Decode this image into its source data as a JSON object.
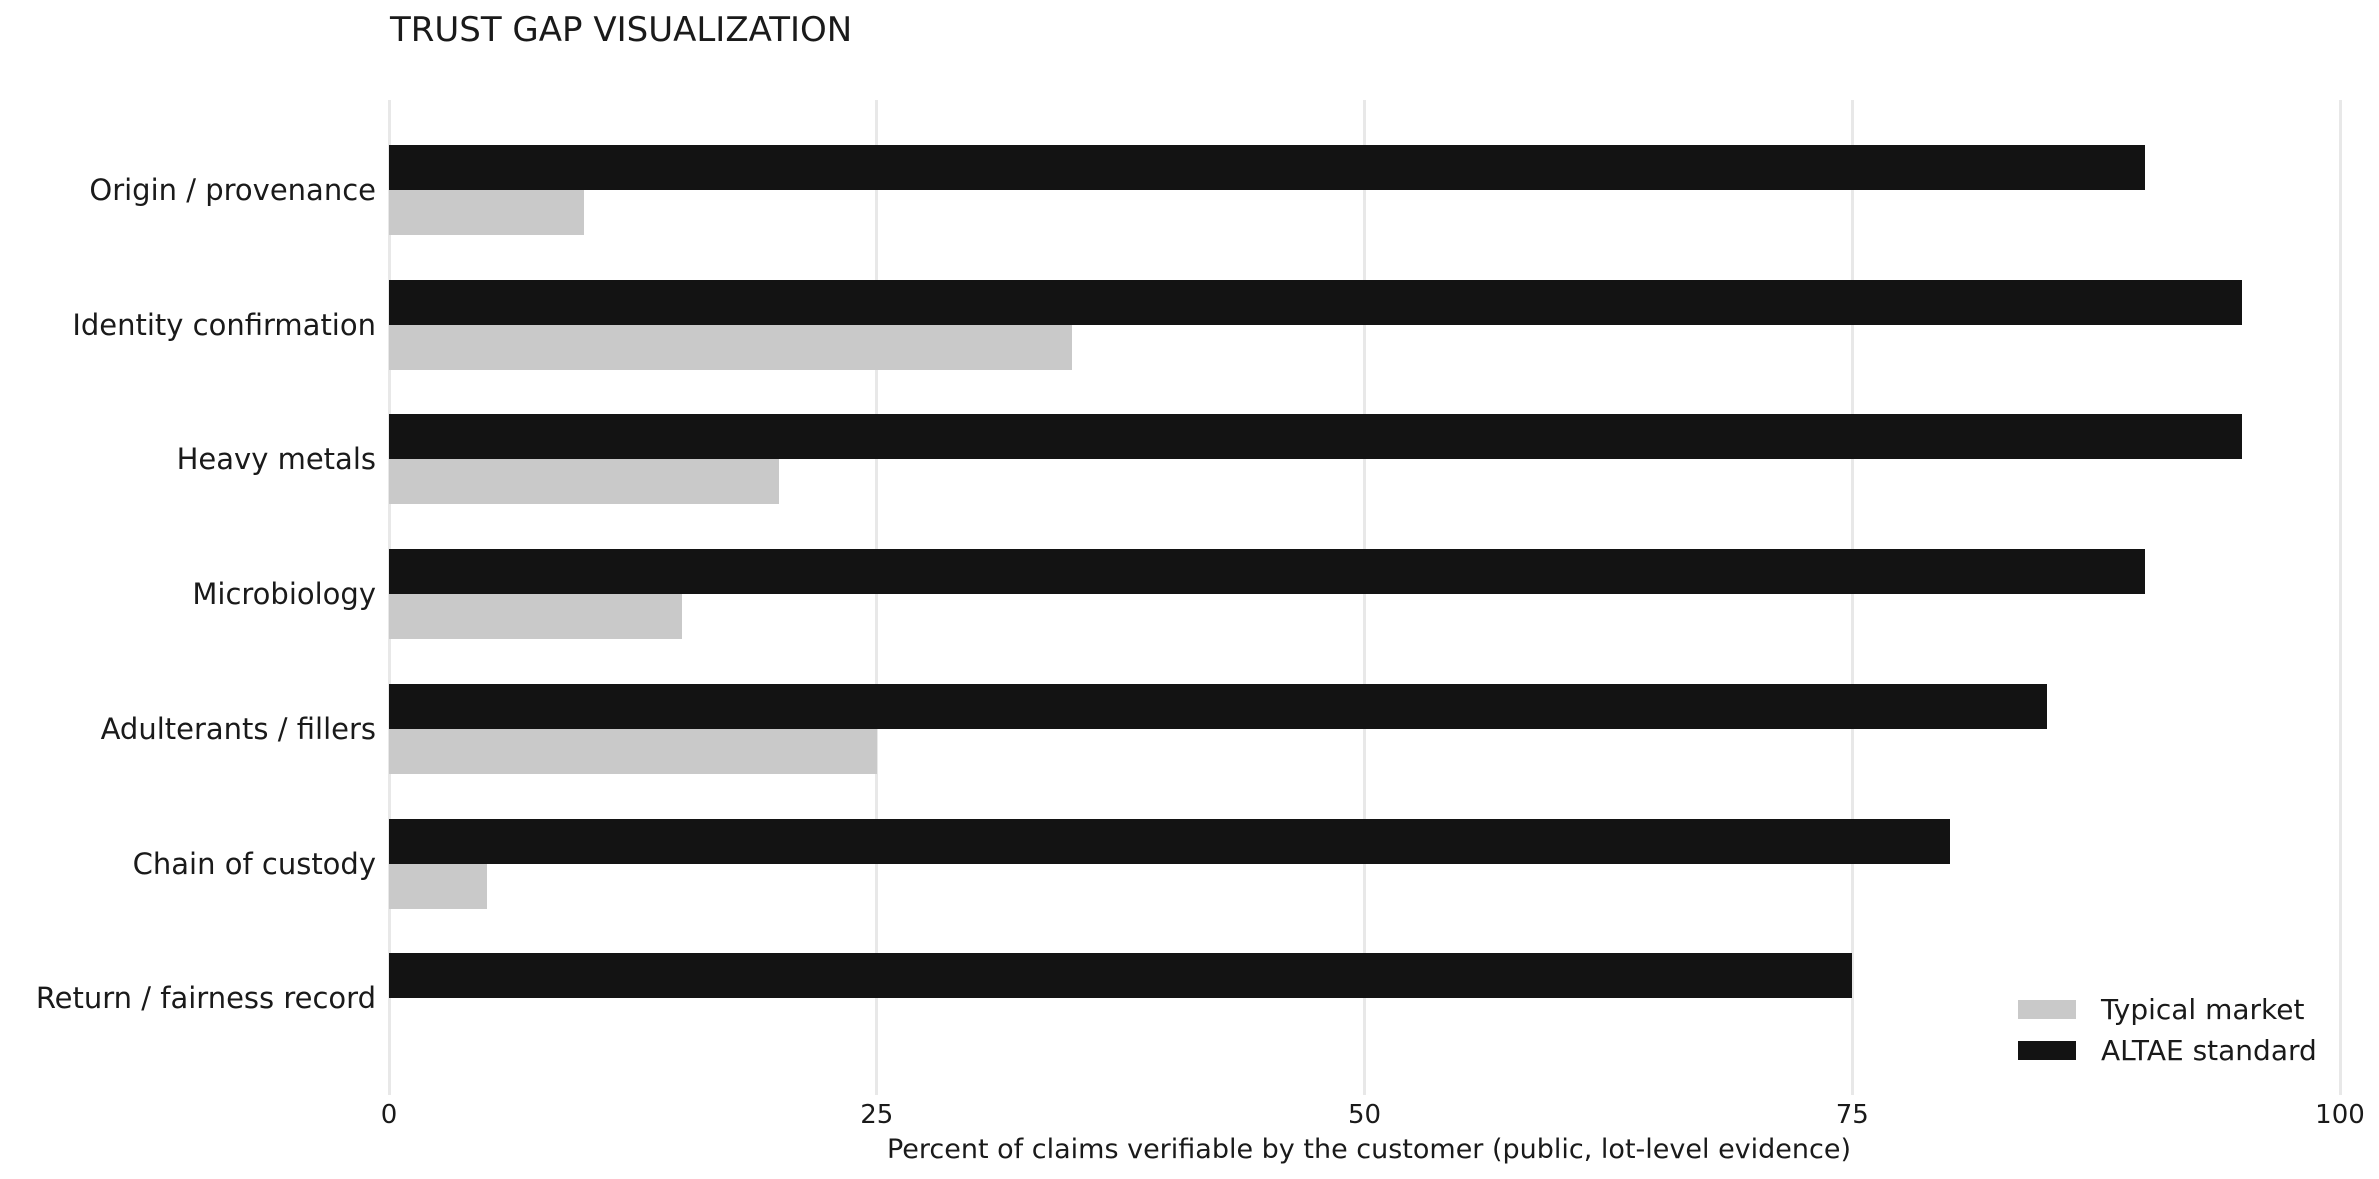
{
  "chart_data": {
    "type": "bar",
    "orientation": "horizontal",
    "title": "TRUST GAP VISUALIZATION",
    "xlabel": "Percent of claims verifiable by the customer (public, lot-level evidence)",
    "categories": [
      "Origin / provenance",
      "Identity confirmation",
      "Heavy metals",
      "Microbiology",
      "Adulterants / fillers",
      "Chain of custody",
      "Return / fairness record"
    ],
    "series": [
      {
        "name": "Typical market",
        "color": "#c9c9c9",
        "values": [
          10,
          35,
          20,
          15,
          25,
          5,
          0
        ]
      },
      {
        "name": "ALTAE standard",
        "color": "#131313",
        "values": [
          90,
          95,
          95,
          90,
          85,
          80,
          75
        ]
      }
    ],
    "x_ticks": [
      0,
      25,
      50,
      75,
      100
    ],
    "xlim": [
      0,
      100
    ],
    "grid": "vertical-only",
    "gridline_color": "#e8e8e8",
    "background_color": "#ffffff",
    "legend_position": "lower-right",
    "legend_entries": [
      "Typical market",
      "ALTAE standard"
    ]
  }
}
